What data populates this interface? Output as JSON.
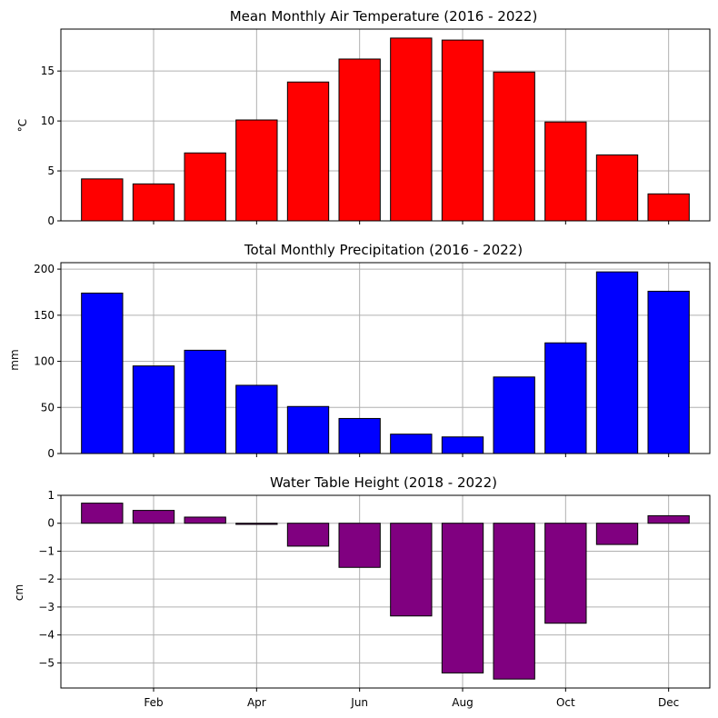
{
  "chart_data": [
    {
      "type": "bar",
      "title": "Mean Monthly Air Temperature (2016 - 2022)",
      "ylabel": "°C",
      "ylim": [
        0,
        19.2
      ],
      "yticks": [
        0,
        5,
        10,
        15
      ],
      "ytick_labels": [
        "0",
        "5",
        "10",
        "15"
      ],
      "color": "#ff0000",
      "grid": true,
      "values": [
        4.2,
        3.7,
        6.8,
        10.1,
        13.9,
        16.2,
        18.3,
        18.1,
        14.9,
        9.9,
        6.6,
        2.7
      ]
    },
    {
      "type": "bar",
      "title": "Total Monthly Precipitation (2016 - 2022)",
      "ylabel": "mm",
      "ylim": [
        0,
        207
      ],
      "yticks": [
        0,
        50,
        100,
        150,
        200
      ],
      "ytick_labels": [
        "0",
        "50",
        "100",
        "150",
        "200"
      ],
      "color": "#0000ff",
      "grid": true,
      "values": [
        174,
        95,
        112,
        74,
        51,
        38,
        21,
        18,
        83,
        120,
        197,
        176
      ]
    },
    {
      "type": "bar",
      "title": "Water Table Height (2018 - 2022)",
      "ylabel": "cm",
      "ylim": [
        -5.9,
        1.0
      ],
      "yticks": [
        1,
        0,
        -1,
        -2,
        -3,
        -4,
        -5
      ],
      "ytick_labels": [
        "1",
        "0",
        "−1",
        "−2",
        "−3",
        "−4",
        "−5"
      ],
      "color": "#800080",
      "grid": true,
      "values": [
        0.72,
        0.46,
        0.22,
        -0.04,
        -0.82,
        -1.58,
        -3.32,
        -5.36,
        -5.58,
        -3.58,
        -0.76,
        0.27
      ]
    }
  ],
  "x_axis": {
    "months": 12,
    "tick_labels": [
      "Feb",
      "Apr",
      "Jun",
      "Aug",
      "Oct",
      "Dec"
    ],
    "tick_months": [
      2,
      4,
      6,
      8,
      10,
      12
    ]
  }
}
